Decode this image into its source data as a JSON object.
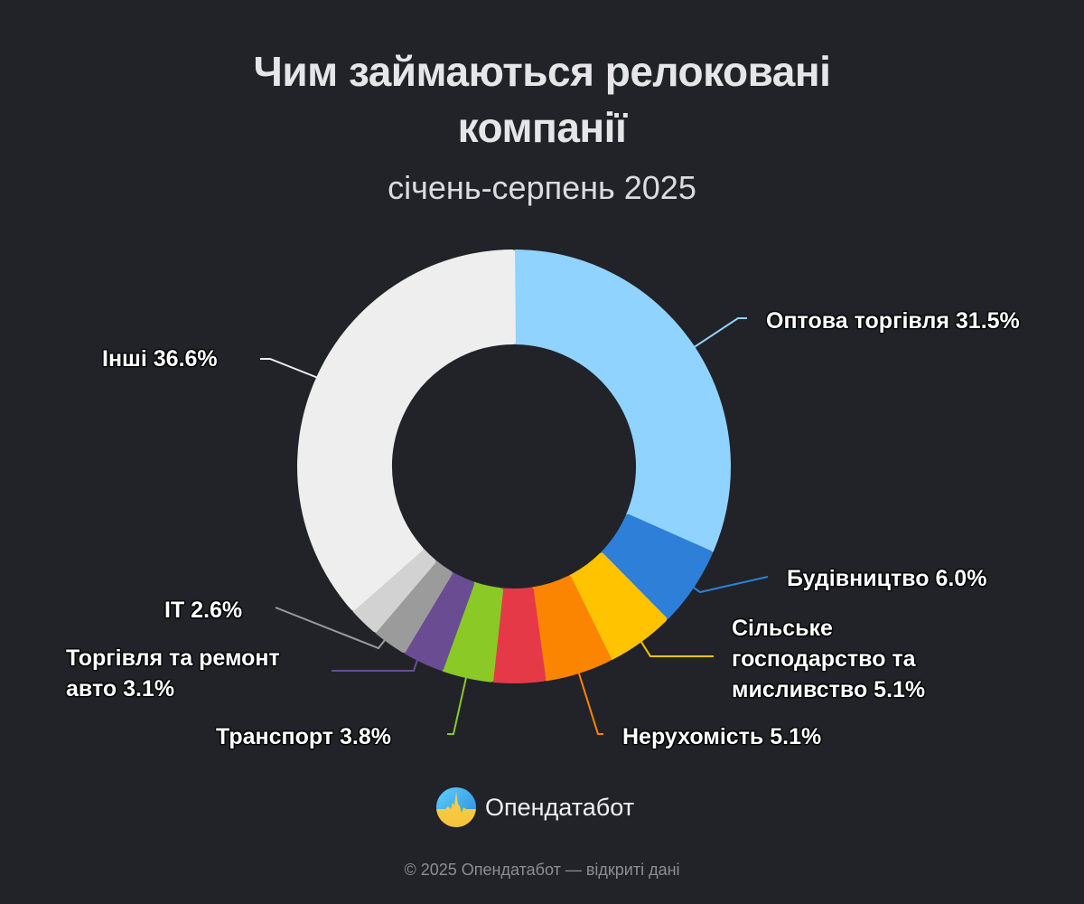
{
  "header": {
    "title_line1": "Чим займаються релоковані",
    "title_line2": "компанії",
    "subtitle": "січень-серпень 2025"
  },
  "chart_data": {
    "type": "pie",
    "variant": "donut",
    "title": "Чим займаються релоковані компанії",
    "subtitle": "січень-серпень 2025",
    "unit": "%",
    "start_angle_deg": 0,
    "direction": "clockwise",
    "slices": [
      {
        "label": "Оптова торгівля",
        "value": 31.5,
        "color": "#8fd3fe",
        "display": "Оптова торгівля 31.5%"
      },
      {
        "label": "Будівництво",
        "value": 6.0,
        "color": "#2d7fd8",
        "display": "Будівництво 6.0%"
      },
      {
        "label": "Сільське господарство та мисливство",
        "value": 5.1,
        "color": "#ffc300",
        "display": "Сільське господарство та мисливство 5.1%"
      },
      {
        "label": "Нерухомість",
        "value": 5.1,
        "color": "#fb8500",
        "display": "Нерухомість 5.1%"
      },
      {
        "label": "",
        "value": 3.9,
        "color": "#e63948",
        "display": ""
      },
      {
        "label": "Транспорт",
        "value": 3.8,
        "color": "#8ac926",
        "display": "Транспорт 3.8%"
      },
      {
        "label": "Торгівля та ремонт авто",
        "value": 3.1,
        "color": "#6a4c93",
        "display": "Торгівля та ремонт авто 3.1%"
      },
      {
        "label": "IT",
        "value": 2.6,
        "color": "#9b9b9b",
        "display": "IT 2.6%"
      },
      {
        "label": "",
        "value": 2.3,
        "color": "#d2d2d2",
        "display": ""
      },
      {
        "label": "Інші",
        "value": 36.6,
        "color": "#eeeeee",
        "display": "Інші 36.6%"
      }
    ],
    "legend": "none (direct labels with leader lines)"
  },
  "labels": {
    "wholesale": "Оптова торгівля 31.5%",
    "construction": "Будівництво 6.0%",
    "agriculture_l1": "Сільське",
    "agriculture_l2": "господарство та",
    "agriculture_l3": "мисливство 5.1%",
    "realestate": "Нерухомість 5.1%",
    "transport": "Транспорт 3.8%",
    "auto_l1": "Торгівля та ремонт",
    "auto_l2": "авто 3.1%",
    "it": "IT 2.6%",
    "other": "Інші 36.6%"
  },
  "brand": {
    "name": "Опендатабот"
  },
  "footer": {
    "text": "© 2025 Опендатабот — відкриті дані"
  }
}
